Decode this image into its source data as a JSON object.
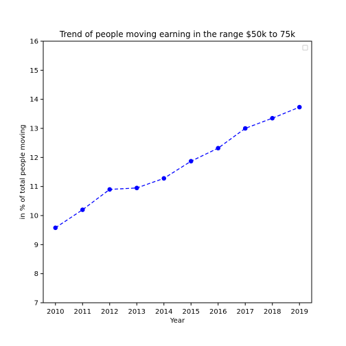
{
  "chart_data": {
    "type": "line",
    "title": "Trend of people moving earning in the range $50k to 75k",
    "xlabel": "Year",
    "ylabel": "in % of total people moving",
    "x": [
      2010,
      2011,
      2012,
      2013,
      2014,
      2015,
      2016,
      2017,
      2018,
      2019
    ],
    "x_tick_labels": [
      "2010",
      "2011",
      "2012",
      "2013",
      "2014",
      "2015",
      "2016",
      "2017",
      "2018",
      "2019"
    ],
    "y_ticks": [
      7,
      8,
      9,
      10,
      11,
      12,
      13,
      14,
      15,
      16
    ],
    "y_tick_labels": [
      "7",
      "8",
      "9",
      "10",
      "11",
      "12",
      "13",
      "14",
      "15",
      "16"
    ],
    "xlim": [
      2009.55,
      2019.45
    ],
    "ylim": [
      7,
      16
    ],
    "series": [
      {
        "values": [
          9.58,
          10.2,
          10.9,
          10.95,
          11.28,
          11.87,
          12.32,
          13.0,
          13.35,
          13.73
        ],
        "color": "#0000ff",
        "line_style": "dashed",
        "marker": "circle"
      }
    ],
    "legend": {
      "placement": "top-right",
      "entries": []
    },
    "grid": false
  }
}
